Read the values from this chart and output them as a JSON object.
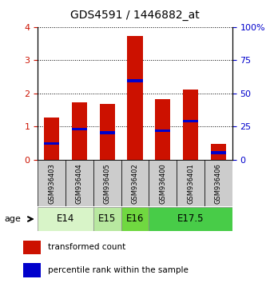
{
  "title": "GDS4591 / 1446882_at",
  "samples": [
    "GSM936403",
    "GSM936404",
    "GSM936405",
    "GSM936402",
    "GSM936400",
    "GSM936401",
    "GSM936406"
  ],
  "transformed_counts": [
    1.27,
    1.72,
    1.68,
    3.73,
    1.83,
    2.12,
    0.47
  ],
  "percentile_ranks": [
    0.5,
    0.92,
    0.82,
    2.38,
    0.88,
    1.17,
    0.22
  ],
  "age_groups": [
    {
      "label": "E14",
      "start": 0,
      "end": 2,
      "color": "#d8f4c8"
    },
    {
      "label": "E15",
      "start": 2,
      "end": 3,
      "color": "#b8e8a0"
    },
    {
      "label": "E16",
      "start": 3,
      "end": 4,
      "color": "#70d840"
    },
    {
      "label": "E17.5",
      "start": 4,
      "end": 7,
      "color": "#48cc48"
    }
  ],
  "bar_color": "#cc1100",
  "percentile_color": "#0000cc",
  "bar_width": 0.55,
  "ylim_left": [
    0,
    4
  ],
  "ylim_right": [
    0,
    100
  ],
  "yticks_left": [
    0,
    1,
    2,
    3,
    4
  ],
  "yticks_right": [
    0,
    25,
    50,
    75,
    100
  ],
  "grid_color": "#000000",
  "background_color": "#ffffff",
  "plot_bg": "#ffffff",
  "sample_box_color": "#cccccc",
  "label_fontsize": 8,
  "title_fontsize": 10,
  "tick_label_color_left": "#cc1100",
  "tick_label_color_right": "#0000cc",
  "legend_items": [
    "transformed count",
    "percentile rank within the sample"
  ],
  "percentile_bar_height": 0.08
}
